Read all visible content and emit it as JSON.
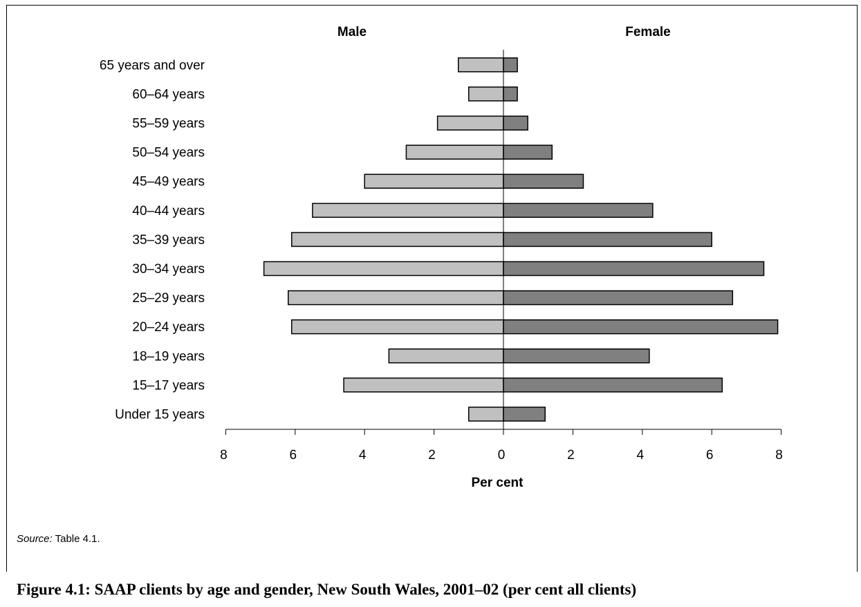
{
  "chart_data": {
    "type": "bar",
    "orientation": "horizontal",
    "layout": "population-pyramid",
    "categories": [
      "Under 15 years",
      "15–17 years",
      "18–19 years",
      "20–24 years",
      "25–29 years",
      "30–34 years",
      "35–39 years",
      "40–44 years",
      "45–49 years",
      "50–54 years",
      "55–59 years",
      "60–64 years",
      "65 years and over"
    ],
    "series": [
      {
        "name": "Male",
        "color": "#c0c0c0",
        "values": [
          1.0,
          4.6,
          3.3,
          6.1,
          6.2,
          6.9,
          6.1,
          5.5,
          4.0,
          2.8,
          1.9,
          1.0,
          1.3
        ]
      },
      {
        "name": "Female",
        "color": "#808080",
        "values": [
          1.2,
          6.3,
          4.2,
          7.9,
          6.6,
          7.5,
          6.0,
          4.3,
          2.3,
          1.4,
          0.7,
          0.4,
          0.4
        ]
      }
    ],
    "xlabel": "Per cent",
    "ylabel": "",
    "xlim": [
      -8,
      8
    ],
    "xticks": [
      -8,
      -6,
      -4,
      -2,
      0,
      2,
      4,
      6,
      8
    ],
    "xtick_labels": [
      "8",
      "6",
      "4",
      "2",
      "0",
      "2",
      "4",
      "6",
      "8"
    ],
    "grid": false,
    "legend": "none"
  },
  "source": {
    "label": "Source:",
    "text": " Table 4.1."
  },
  "caption": "Figure 4.1: SAAP clients by age and gender, New South Wales, 2001–02 (per cent all clients)"
}
